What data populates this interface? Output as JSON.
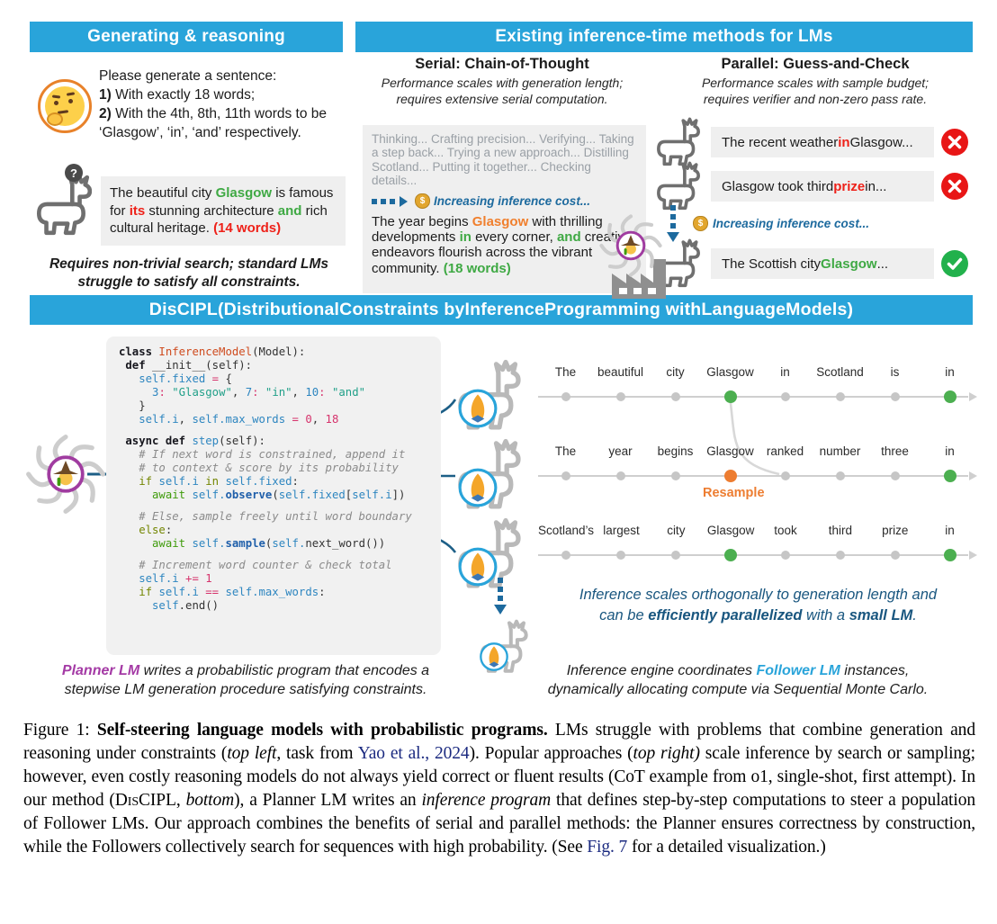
{
  "colors": {
    "header_blue": "#29a4da",
    "green": "#3fa944",
    "red": "#ee2119",
    "orange": "#ed7d31",
    "planner_purple": "#a43aa5",
    "follower_blue": "#29a4da",
    "cost_blue": "#1d6a9e",
    "summary_blue": "#19567f",
    "link_navy": "#1b2a80",
    "gray_box": "#efefef"
  },
  "icons": {
    "thinking_face": "thinking-face-emoji",
    "llama": "llama-outline",
    "question_badge_text": "?",
    "money_bag_symbol": "$",
    "praying_hands": "folded-hands-in-blue-circle",
    "wizard": "wizard-in-swirl",
    "factory": "factory-silhouette",
    "fail": "red-x-circle",
    "pass": "green-check-circle"
  },
  "left": {
    "header": "Generating & reasoning",
    "prompt": [
      {
        "t": "Please generate a sentence:\n",
        "s": "pl"
      },
      {
        "t": "1)",
        "s": "b"
      },
      {
        "t": " With exactly 18 words;\n",
        "s": "pl"
      },
      {
        "t": "2)",
        "s": "b"
      },
      {
        "t": " With the 4th, 8th, 11th words to be ‘Glasgow’, ‘in’, ‘and’ respectively.",
        "s": "pl"
      }
    ],
    "q_badge": "?",
    "answer": [
      {
        "t": "The beautiful city ",
        "s": "pl"
      },
      {
        "t": "Glasgow",
        "s": "green"
      },
      {
        "t": " is famous for ",
        "s": "pl"
      },
      {
        "t": "its",
        "s": "red"
      },
      {
        "t": " stunning architecture ",
        "s": "pl"
      },
      {
        "t": "and",
        "s": "green"
      },
      {
        "t": " rich cultural heritage. ",
        "s": "pl"
      },
      {
        "t": "(14 words)",
        "s": "red"
      }
    ],
    "note": "Requires non-trivial search; standard LMs\nstruggle to satisfy all constraints."
  },
  "methods": {
    "header": "Existing inference-time methods for LMs",
    "serial": {
      "title": "Serial: Chain-of-Thought",
      "desc": "Performance scales with generation length;\nrequires extensive serial computation.",
      "thinking": "Thinking... Crafting precision... Verifying... Taking a step back... Trying a new approach... Distilling Scotland... Putting it together... Checking details...",
      "cost_note": "Increasing inference cost...",
      "answer": [
        {
          "t": "The year begins ",
          "s": "pl"
        },
        {
          "t": "Glasgow",
          "s": "orange"
        },
        {
          "t": " with thrilling developments ",
          "s": "pl"
        },
        {
          "t": "in",
          "s": "green"
        },
        {
          "t": " every corner, ",
          "s": "pl"
        },
        {
          "t": "and",
          "s": "green"
        },
        {
          "t": " creative endeavors flourish across the vibrant community. ",
          "s": "pl"
        },
        {
          "t": "(18 words)",
          "s": "green"
        }
      ]
    },
    "parallel": {
      "title": "Parallel: Guess-and-Check",
      "desc": "Performance scales with sample budget;\nrequires verifier and non-zero pass rate.",
      "cost_note": "Increasing inference cost...",
      "rows": [
        {
          "verdict": "fail",
          "segments": [
            {
              "t": "The recent weather ",
              "s": "pl"
            },
            {
              "t": "in",
              "s": "red"
            },
            {
              "t": " Glasgow...",
              "s": "pl"
            }
          ]
        },
        {
          "verdict": "fail",
          "segments": [
            {
              "t": "Glasgow took third ",
              "s": "pl"
            },
            {
              "t": "prize",
              "s": "red"
            },
            {
              "t": " in...",
              "s": "pl"
            }
          ]
        },
        {
          "verdict": "pass",
          "segments": [
            {
              "t": "The Scottish city ",
              "s": "pl"
            },
            {
              "t": "Glasgow",
              "s": "green"
            },
            {
              "t": "...",
              "s": "pl"
            }
          ]
        }
      ]
    }
  },
  "banner": {
    "segments": [
      {
        "t": "DisCIPL",
        "s": "bb"
      },
      {
        "t": " (",
        "s": "bn"
      },
      {
        "t": "Dis",
        "s": "bb"
      },
      {
        "t": "tributional ",
        "s": "bn"
      },
      {
        "t": "C",
        "s": "bb"
      },
      {
        "t": "onstraints by ",
        "s": "bn"
      },
      {
        "t": "I",
        "s": "bb"
      },
      {
        "t": "nference ",
        "s": "bn"
      },
      {
        "t": "P",
        "s": "bb"
      },
      {
        "t": "rogramming with ",
        "s": "bn"
      },
      {
        "t": "L",
        "s": "bb"
      },
      {
        "t": "anguage ",
        "s": "bn"
      },
      {
        "t": "M",
        "s": "bb"
      },
      {
        "t": "odels)",
        "s": "bn"
      }
    ]
  },
  "discipl": {
    "code": {
      "lines": [
        [
          {
            "t": "class ",
            "s": "kw"
          },
          {
            "t": "InferenceModel",
            "s": "cls"
          },
          {
            "t": "(Model):",
            "s": "pl"
          }
        ],
        [
          {
            "t": " ",
            "s": "pl"
          },
          {
            "t": "def ",
            "s": "kw"
          },
          {
            "t": "__init__",
            "s": "pl"
          },
          {
            "t": "(self):",
            "s": "pl"
          }
        ],
        [
          {
            "t": "   ",
            "s": "pl"
          },
          {
            "t": "self.fixed",
            "s": "var"
          },
          {
            "t": " ",
            "s": "pl"
          },
          {
            "t": "=",
            "s": "op"
          },
          {
            "t": " {",
            "s": "pl"
          }
        ],
        [
          {
            "t": "     ",
            "s": "pl"
          },
          {
            "t": "3",
            "s": "num"
          },
          {
            "t": ":",
            "s": "op"
          },
          {
            "t": " ",
            "s": "pl"
          },
          {
            "t": "\"Glasgow\"",
            "s": "str"
          },
          {
            "t": ", ",
            "s": "pl"
          },
          {
            "t": "7",
            "s": "num"
          },
          {
            "t": ":",
            "s": "op"
          },
          {
            "t": " ",
            "s": "pl"
          },
          {
            "t": "\"in\"",
            "s": "str"
          },
          {
            "t": ", ",
            "s": "pl"
          },
          {
            "t": "10",
            "s": "num"
          },
          {
            "t": ":",
            "s": "op"
          },
          {
            "t": " ",
            "s": "pl"
          },
          {
            "t": "\"and\"",
            "s": "str"
          }
        ],
        [
          {
            "t": "   }",
            "s": "pl"
          }
        ],
        [
          {
            "t": "   ",
            "s": "pl"
          },
          {
            "t": "self.i",
            "s": "var"
          },
          {
            "t": ", ",
            "s": "pl"
          },
          {
            "t": "self.max_words",
            "s": "var"
          },
          {
            "t": " ",
            "s": "pl"
          },
          {
            "t": "=",
            "s": "op"
          },
          {
            "t": " ",
            "s": "pl"
          },
          {
            "t": "0",
            "s": "op"
          },
          {
            "t": ", ",
            "s": "pl"
          },
          {
            "t": "18",
            "s": "op"
          }
        ],
        [],
        [
          {
            "t": " ",
            "s": "pl"
          },
          {
            "t": "async def ",
            "s": "kw"
          },
          {
            "t": "step",
            "s": "fn"
          },
          {
            "t": "(self):",
            "s": "pl"
          }
        ],
        [
          {
            "t": "   # If next word is constrained, append it",
            "s": "cm"
          }
        ],
        [
          {
            "t": "   # to context & score by its probability",
            "s": "cm"
          }
        ],
        [
          {
            "t": "   ",
            "s": "pl"
          },
          {
            "t": "if",
            "s": "kw2"
          },
          {
            "t": " ",
            "s": "pl"
          },
          {
            "t": "self.i",
            "s": "var"
          },
          {
            "t": " ",
            "s": "pl"
          },
          {
            "t": "in",
            "s": "kw2"
          },
          {
            "t": " ",
            "s": "pl"
          },
          {
            "t": "self.fixed",
            "s": "var"
          },
          {
            "t": ":",
            "s": "pl"
          }
        ],
        [
          {
            "t": "     ",
            "s": "pl"
          },
          {
            "t": "await",
            "s": "kw3"
          },
          {
            "t": " ",
            "s": "pl"
          },
          {
            "t": "self.",
            "s": "var"
          },
          {
            "t": "observe",
            "s": "meth"
          },
          {
            "t": "(",
            "s": "pl"
          },
          {
            "t": "self.fixed",
            "s": "var"
          },
          {
            "t": "[",
            "s": "pl"
          },
          {
            "t": "self.i",
            "s": "var"
          },
          {
            "t": "])",
            "s": "pl"
          }
        ],
        [],
        [
          {
            "t": "   # Else, sample freely until word boundary",
            "s": "cm"
          }
        ],
        [
          {
            "t": "   ",
            "s": "pl"
          },
          {
            "t": "else",
            "s": "kw2"
          },
          {
            "t": ":",
            "s": "pl"
          }
        ],
        [
          {
            "t": "     ",
            "s": "pl"
          },
          {
            "t": "await",
            "s": "kw3"
          },
          {
            "t": " ",
            "s": "pl"
          },
          {
            "t": "self.",
            "s": "var"
          },
          {
            "t": "sample",
            "s": "meth"
          },
          {
            "t": "(",
            "s": "pl"
          },
          {
            "t": "self.",
            "s": "var"
          },
          {
            "t": "next_word",
            "s": "pl"
          },
          {
            "t": "())",
            "s": "pl"
          }
        ],
        [],
        [
          {
            "t": "   # Increment word counter & check total",
            "s": "cm"
          }
        ],
        [
          {
            "t": "   ",
            "s": "pl"
          },
          {
            "t": "self.i",
            "s": "var"
          },
          {
            "t": " ",
            "s": "pl"
          },
          {
            "t": "+=",
            "s": "op"
          },
          {
            "t": " ",
            "s": "pl"
          },
          {
            "t": "1",
            "s": "op"
          }
        ],
        [
          {
            "t": "   ",
            "s": "pl"
          },
          {
            "t": "if",
            "s": "kw2"
          },
          {
            "t": " ",
            "s": "pl"
          },
          {
            "t": "self.i",
            "s": "var"
          },
          {
            "t": " ",
            "s": "pl"
          },
          {
            "t": "==",
            "s": "op"
          },
          {
            "t": " ",
            "s": "pl"
          },
          {
            "t": "self.max_words",
            "s": "var"
          },
          {
            "t": ":",
            "s": "pl"
          }
        ],
        [
          {
            "t": "     ",
            "s": "pl"
          },
          {
            "t": "self",
            "s": "var"
          },
          {
            "t": ".end()",
            "s": "pl"
          }
        ]
      ]
    },
    "planner_caption": [
      {
        "t": "Planner LM",
        "s": "purple"
      },
      {
        "t": " writes a probabilistic program that encodes a\nstepwise LM generation procedure satisfying constraints.",
        "s": "i"
      }
    ],
    "chains": [
      {
        "words": [
          {
            "t": "The",
            "d": "g"
          },
          {
            "t": "beautiful",
            "d": "g"
          },
          {
            "t": "city",
            "d": "g"
          },
          {
            "t": "Glasgow",
            "d": "green"
          },
          {
            "t": "in",
            "d": "g"
          },
          {
            "t": "Scotland",
            "d": "g"
          },
          {
            "t": "is",
            "d": "g"
          },
          {
            "t": "in",
            "d": "green"
          }
        ]
      },
      {
        "words": [
          {
            "t": "The",
            "d": "g"
          },
          {
            "t": "year",
            "d": "g"
          },
          {
            "t": "begins",
            "d": "g"
          },
          {
            "t": "Glasgow",
            "d": "orange",
            "label": "Resample"
          },
          {
            "t": "ranked",
            "d": "g"
          },
          {
            "t": "number",
            "d": "g"
          },
          {
            "t": "three",
            "d": "g"
          },
          {
            "t": "in",
            "d": "green"
          }
        ]
      },
      {
        "words": [
          {
            "t": "Scotland’s",
            "d": "g"
          },
          {
            "t": "largest",
            "d": "g"
          },
          {
            "t": "city",
            "d": "g"
          },
          {
            "t": "Glasgow",
            "d": "green"
          },
          {
            "t": "took",
            "d": "g"
          },
          {
            "t": "third",
            "d": "g"
          },
          {
            "t": "prize",
            "d": "g"
          },
          {
            "t": "in",
            "d": "green"
          }
        ]
      }
    ],
    "summary": [
      {
        "t": "Inference scales orthogonally to generation length and\ncan be ",
        "s": "i"
      },
      {
        "t": "efficiently parallelized",
        "s": "bi"
      },
      {
        "t": " with a ",
        "s": "i"
      },
      {
        "t": "small LM",
        "s": "bi"
      },
      {
        "t": ".",
        "s": "i"
      }
    ],
    "follower_caption": [
      {
        "t": "Inference engine coordinates ",
        "s": "i"
      },
      {
        "t": "Follower LM",
        "s": "blue"
      },
      {
        "t": " instances,\ndynamically allocating compute via Sequential Monte Carlo.",
        "s": "i"
      }
    ]
  },
  "caption": [
    {
      "t": "Figure 1: ",
      "s": "pl"
    },
    {
      "t": "Self-steering language models with probabilistic programs.",
      "s": "b"
    },
    {
      "t": " LMs struggle with problems that combine generation and reasoning under constraints (",
      "s": "pl"
    },
    {
      "t": "top left",
      "s": "i"
    },
    {
      "t": ", task from ",
      "s": "pl"
    },
    {
      "t": "Yao et al., 2024",
      "s": "link"
    },
    {
      "t": "). Popular approaches (",
      "s": "pl"
    },
    {
      "t": "top right)",
      "s": "i"
    },
    {
      "t": " scale inference by search or sampling; however, even costly reasoning models do not always yield correct or fluent results (CoT example from o1, single-shot, first attempt). In our method (",
      "s": "pl"
    },
    {
      "t": "DisCIPL",
      "s": "sc"
    },
    {
      "t": ", ",
      "s": "pl"
    },
    {
      "t": "bottom",
      "s": "i"
    },
    {
      "t": "), a Planner LM writes an ",
      "s": "pl"
    },
    {
      "t": "inference program",
      "s": "i"
    },
    {
      "t": " that defines step-by-step computations to steer a population of Follower LMs.  Our approach combines the benefits of serial and parallel methods: the Planner ensures correctness by construction, while the Followers collectively search for sequences with high probability. (See ",
      "s": "pl"
    },
    {
      "t": "Fig. 7",
      "s": "link"
    },
    {
      "t": " for a detailed visualization.)",
      "s": "pl"
    }
  ]
}
